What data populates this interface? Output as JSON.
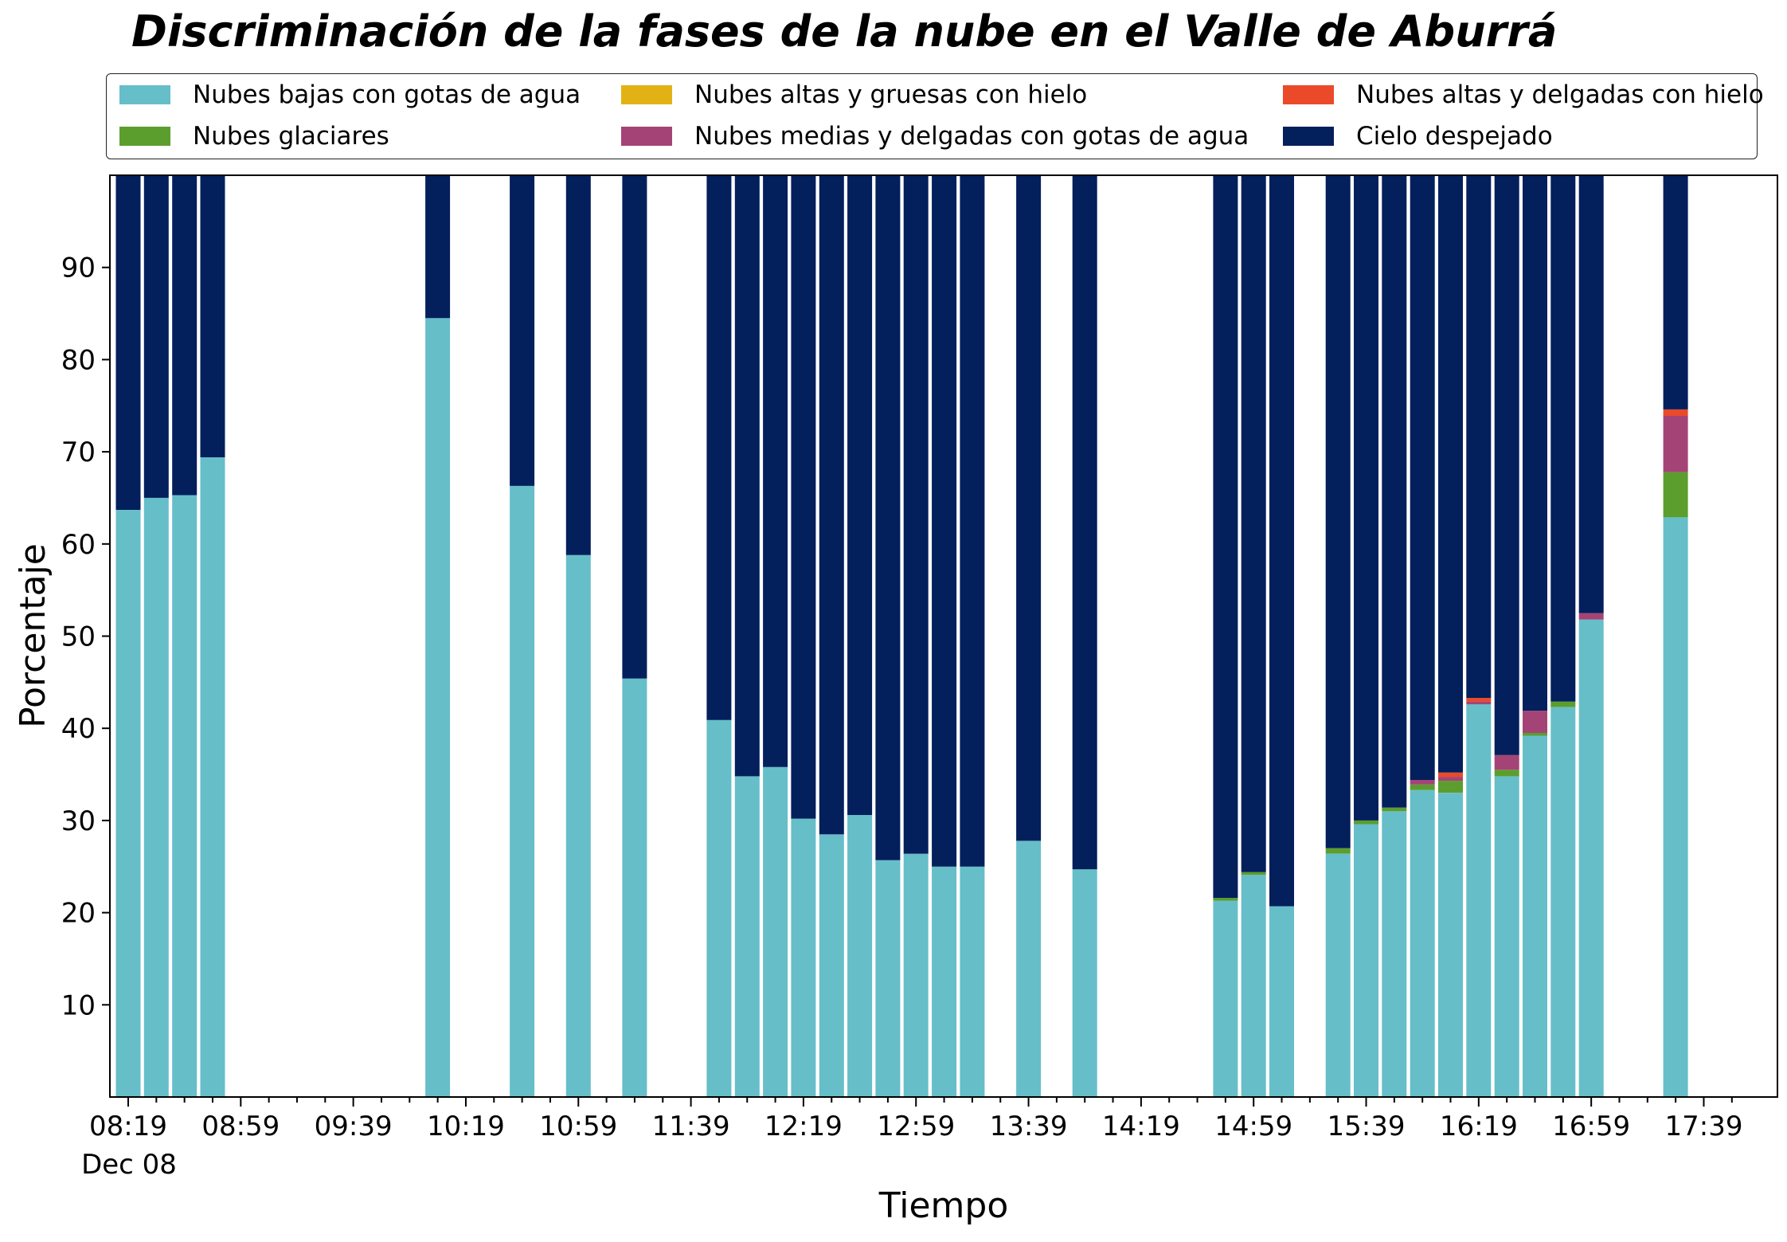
{
  "chart_data": {
    "type": "bar",
    "stacked": true,
    "title": "Discriminación de la fases de la nube en el Valle de Aburrá",
    "xlabel": "Tiempo",
    "ylabel": "Porcentaje",
    "ylim": [
      0,
      100
    ],
    "yticks": [
      10,
      20,
      30,
      40,
      50,
      60,
      70,
      80,
      90
    ],
    "grid": false,
    "legend_position": "top",
    "x_start": "08:19",
    "x_interval_minutes": 10,
    "x_end": "17:49",
    "x_tick_labels": [
      "08:19",
      "08:59",
      "09:39",
      "10:19",
      "10:59",
      "11:39",
      "12:19",
      "12:59",
      "13:39",
      "14:19",
      "14:59",
      "15:39",
      "16:19",
      "16:59",
      "17:39"
    ],
    "x_date_label": "Dec 08",
    "bars": [
      {
        "time": "08:19",
        "values": [
          63.7,
          0,
          0,
          0,
          0,
          36.3
        ]
      },
      {
        "time": "08:29",
        "values": [
          65.0,
          0,
          0,
          0,
          0,
          35.0
        ]
      },
      {
        "time": "08:39",
        "values": [
          65.3,
          0,
          0,
          0,
          0,
          34.7
        ]
      },
      {
        "time": "08:49",
        "values": [
          69.4,
          0,
          0,
          0,
          0,
          30.6
        ]
      },
      {
        "time": "10:09",
        "values": [
          84.5,
          0,
          0,
          0,
          0,
          15.5
        ]
      },
      {
        "time": "10:39",
        "values": [
          66.3,
          0,
          0,
          0,
          0,
          33.7
        ]
      },
      {
        "time": "10:59",
        "values": [
          58.8,
          0,
          0,
          0,
          0,
          41.2
        ]
      },
      {
        "time": "11:19",
        "values": [
          45.4,
          0,
          0,
          0,
          0,
          54.6
        ]
      },
      {
        "time": "11:49",
        "values": [
          40.9,
          0,
          0,
          0,
          0,
          59.1
        ]
      },
      {
        "time": "11:59",
        "values": [
          34.8,
          0,
          0,
          0,
          0,
          65.2
        ]
      },
      {
        "time": "12:09",
        "values": [
          35.8,
          0,
          0,
          0,
          0,
          64.2
        ]
      },
      {
        "time": "12:19",
        "values": [
          30.2,
          0,
          0,
          0,
          0,
          69.8
        ]
      },
      {
        "time": "12:29",
        "values": [
          28.5,
          0,
          0,
          0,
          0,
          71.5
        ]
      },
      {
        "time": "12:39",
        "values": [
          30.6,
          0,
          0,
          0,
          0,
          69.4
        ]
      },
      {
        "time": "12:49",
        "values": [
          25.7,
          0,
          0,
          0,
          0,
          74.3
        ]
      },
      {
        "time": "12:59",
        "values": [
          26.4,
          0,
          0,
          0,
          0,
          73.6
        ]
      },
      {
        "time": "13:09",
        "values": [
          25.0,
          0,
          0,
          0,
          0,
          75.0
        ]
      },
      {
        "time": "13:19",
        "values": [
          25.0,
          0,
          0,
          0,
          0,
          75.0
        ]
      },
      {
        "time": "13:39",
        "values": [
          27.8,
          0,
          0,
          0,
          0,
          72.2
        ]
      },
      {
        "time": "13:59",
        "values": [
          24.7,
          0,
          0,
          0,
          0,
          75.3
        ]
      },
      {
        "time": "14:49",
        "values": [
          21.3,
          0.3,
          0,
          0,
          0,
          78.4
        ]
      },
      {
        "time": "14:59",
        "values": [
          24.1,
          0.3,
          0,
          0,
          0,
          75.6
        ]
      },
      {
        "time": "15:09",
        "values": [
          20.7,
          0,
          0,
          0,
          0,
          79.3
        ]
      },
      {
        "time": "15:29",
        "values": [
          26.4,
          0.6,
          0,
          0,
          0,
          73.0
        ]
      },
      {
        "time": "15:39",
        "values": [
          29.6,
          0.4,
          0,
          0,
          0,
          70.0
        ]
      },
      {
        "time": "15:49",
        "values": [
          31.0,
          0.4,
          0,
          0,
          0,
          68.6
        ]
      },
      {
        "time": "15:59",
        "values": [
          33.3,
          0.6,
          0,
          0.5,
          0,
          65.6
        ]
      },
      {
        "time": "16:09",
        "values": [
          33.0,
          1.3,
          0,
          0.4,
          0.5,
          64.8
        ]
      },
      {
        "time": "16:19",
        "values": [
          42.6,
          0,
          0,
          0.3,
          0.4,
          56.7
        ]
      },
      {
        "time": "16:29",
        "values": [
          34.8,
          0.7,
          0,
          1.6,
          0,
          62.9
        ]
      },
      {
        "time": "16:39",
        "values": [
          39.2,
          0.3,
          0,
          2.4,
          0,
          58.1
        ]
      },
      {
        "time": "16:49",
        "values": [
          42.3,
          0.6,
          0,
          0,
          0,
          57.1
        ]
      },
      {
        "time": "16:59",
        "values": [
          51.8,
          0,
          0,
          0.7,
          0,
          47.5
        ]
      },
      {
        "time": "17:29",
        "values": [
          62.9,
          4.9,
          0,
          6.1,
          0.7,
          25.4
        ]
      }
    ],
    "series": [
      {
        "name": "Nubes bajas con gotas de agua",
        "color": "#66bec9"
      },
      {
        "name": "Nubes glaciares",
        "color": "#5b9e2e"
      },
      {
        "name": "Nubes altas y gruesas con hielo",
        "color": "#e2b215"
      },
      {
        "name": "Nubes medias y delgadas con gotas de agua",
        "color": "#a44476"
      },
      {
        "name": "Nubes altas y delgadas con hielo",
        "color": "#ea4a2a"
      },
      {
        "name": "Cielo despejado",
        "color": "#031f5c"
      }
    ]
  }
}
